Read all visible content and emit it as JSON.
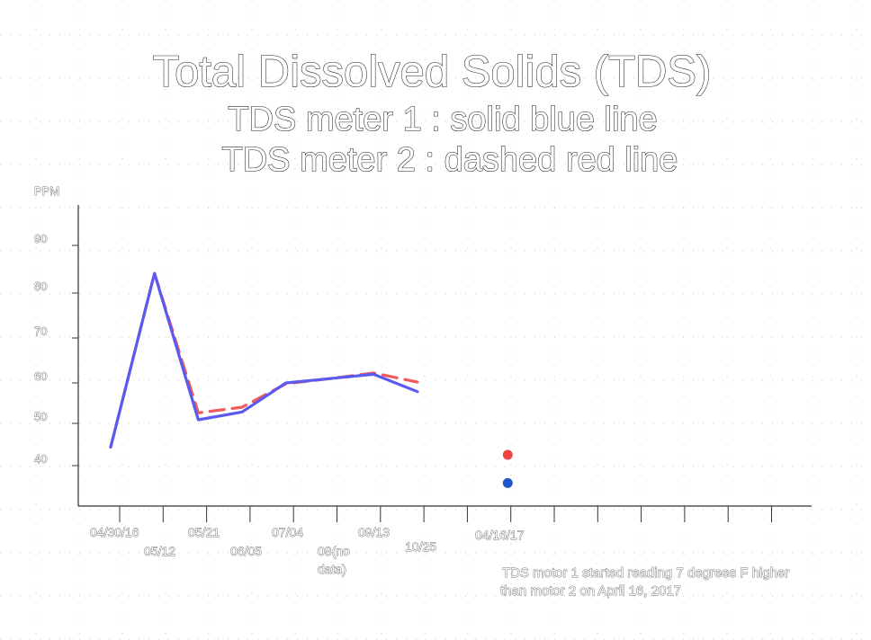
{
  "chart_data": {
    "type": "line",
    "title": "Total Dissolved Solids (TDS)",
    "subtitle_lines": [
      "TDS meter 1 : solid blue line",
      "TDS meter 2 : dashed red line"
    ],
    "ylabel": "PPM",
    "ylim": [
      40,
      90
    ],
    "y_ticks": [
      "90",
      "80",
      "70",
      "60",
      "50",
      "40"
    ],
    "x_tick_labels": [
      "04/30/16",
      "05/12",
      "05/21",
      "06/05",
      "07/04",
      "08(no data)",
      "09/13",
      "10/25",
      "04/16/17"
    ],
    "grid": true,
    "series": [
      {
        "style": "solid",
        "color": "#5a5af0",
        "values": [
          {
            "x": 0,
            "y": 43.7
          },
          {
            "x": 1,
            "y": 83.8
          },
          {
            "x": 2,
            "y": 50.0
          },
          {
            "x": 3,
            "y": 51.8
          },
          {
            "x": 4,
            "y": 58.5
          },
          {
            "x": 5,
            "y": 59.5
          },
          {
            "x": 6,
            "y": 60.5
          },
          {
            "x": 7,
            "y": 56.5
          }
        ]
      },
      {
        "style": "dashed",
        "color": "#f05a5a",
        "values": [
          {
            "x": 0,
            "y": 43.7
          },
          {
            "x": 1,
            "y": 83.8
          },
          {
            "x": 2,
            "y": 51.6
          },
          {
            "x": 3,
            "y": 52.9
          },
          {
            "x": 4,
            "y": 58.3
          },
          {
            "x": 5,
            "y": 59.5
          },
          {
            "x": 6,
            "y": 60.8
          },
          {
            "x": 7,
            "y": 58.7
          }
        ]
      }
    ],
    "points": [
      {
        "x": 9,
        "y": 41.9,
        "color": "#ee4444",
        "series": "meter 2"
      },
      {
        "x": 9,
        "y": 35.4,
        "color": "#2255cc",
        "series": "meter 1"
      }
    ],
    "annotation": [
      "TDS motor 1 started reading 7 degrees F higher",
      "than motor 2 on April 16, 2017"
    ]
  }
}
